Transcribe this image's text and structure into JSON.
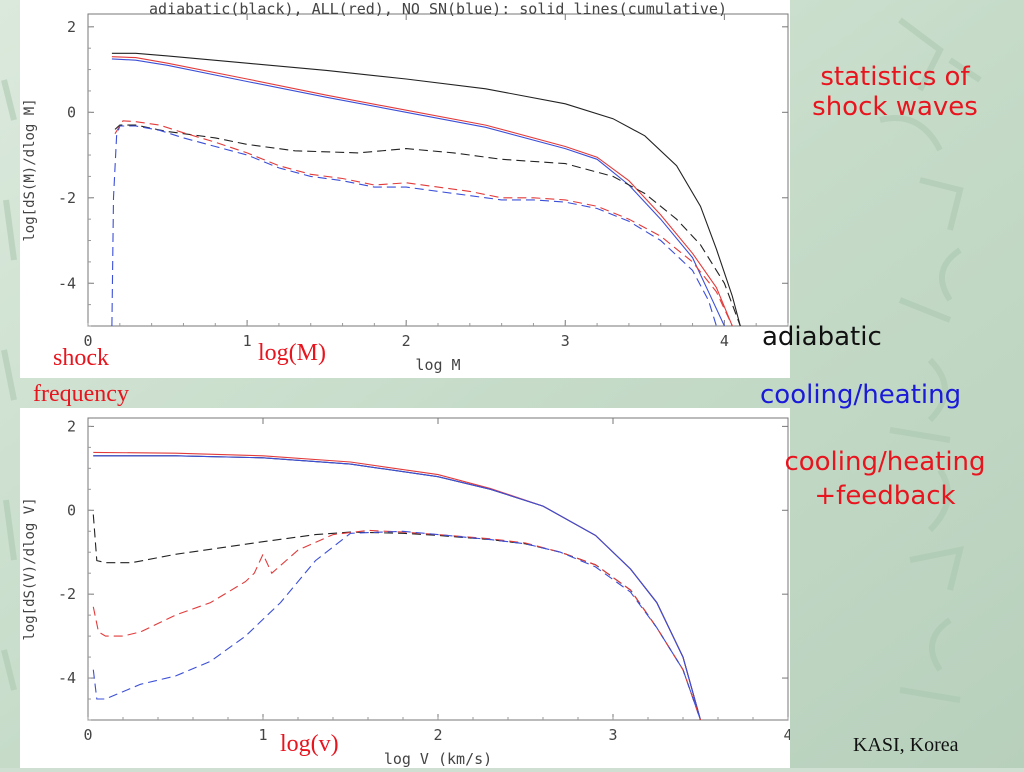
{
  "annotations": {
    "statistics": "statistics of\nshock waves",
    "adiabatic": "adiabatic",
    "cooling": "cooling/heating",
    "feedback": "cooling/heating\n+feedback",
    "shock_frequency": "shock\nfrequency",
    "logM": "log(M)",
    "logv": "log(v)",
    "credit": "KASI, Korea"
  },
  "colors": {
    "adiabatic": "#222222",
    "all": "#e23b3b",
    "nosn": "#3b4fd8"
  },
  "chart_data": [
    {
      "type": "line",
      "title": "adiabatic(black), ALL(red), NO SN(blue): solid lines(cumulative)",
      "xlabel": "log M",
      "ylabel": "log[dS(M)/dlog M]",
      "xlim": [
        0,
        4.4
      ],
      "ylim": [
        -5,
        2.3
      ],
      "xticks": [
        0,
        1,
        2,
        3,
        4
      ],
      "yticks": [
        -4,
        -2,
        0,
        2
      ],
      "series": [
        {
          "color": "#222222",
          "style": "solid",
          "x": [
            0.15,
            0.3,
            0.5,
            1.0,
            1.5,
            2.0,
            2.5,
            3.0,
            3.3,
            3.5,
            3.7,
            3.85,
            3.95,
            4.05,
            4.1
          ],
          "y": [
            1.38,
            1.38,
            1.32,
            1.15,
            0.98,
            0.78,
            0.55,
            0.2,
            -0.15,
            -0.55,
            -1.25,
            -2.2,
            -3.2,
            -4.3,
            -5.0
          ]
        },
        {
          "color": "#e23b3b",
          "style": "solid",
          "x": [
            0.15,
            0.3,
            0.5,
            1.0,
            1.5,
            2.0,
            2.5,
            3.0,
            3.2,
            3.4,
            3.6,
            3.8,
            3.95,
            4.05
          ],
          "y": [
            1.3,
            1.28,
            1.15,
            0.78,
            0.4,
            0.05,
            -0.3,
            -0.8,
            -1.05,
            -1.6,
            -2.4,
            -3.3,
            -4.1,
            -5.0
          ]
        },
        {
          "color": "#3b4fd8",
          "style": "solid",
          "x": [
            0.15,
            0.3,
            0.5,
            1.0,
            1.5,
            2.0,
            2.5,
            3.0,
            3.2,
            3.4,
            3.6,
            3.8,
            3.9,
            4.0
          ],
          "y": [
            1.25,
            1.22,
            1.1,
            0.72,
            0.35,
            0.0,
            -0.35,
            -0.85,
            -1.1,
            -1.7,
            -2.5,
            -3.4,
            -4.2,
            -5.0
          ]
        },
        {
          "color": "#222222",
          "style": "dashed",
          "x": [
            0.17,
            0.2,
            0.3,
            0.5,
            0.8,
            1.0,
            1.3,
            1.7,
            2.0,
            2.3,
            2.6,
            3.0,
            3.3,
            3.5,
            3.7,
            3.85,
            4.0,
            4.1
          ],
          "y": [
            -0.4,
            -0.3,
            -0.3,
            -0.45,
            -0.6,
            -0.75,
            -0.9,
            -0.95,
            -0.85,
            -0.95,
            -1.1,
            -1.2,
            -1.5,
            -1.9,
            -2.5,
            -3.1,
            -4.0,
            -5.0
          ]
        },
        {
          "color": "#e23b3b",
          "style": "dashed",
          "x": [
            0.17,
            0.22,
            0.3,
            0.45,
            0.6,
            0.8,
            1.0,
            1.2,
            1.4,
            1.6,
            1.8,
            2.0,
            2.2,
            2.4,
            2.6,
            2.8,
            3.0,
            3.2,
            3.4,
            3.6,
            3.8,
            3.95,
            4.05
          ],
          "y": [
            -0.5,
            -0.2,
            -0.22,
            -0.3,
            -0.48,
            -0.7,
            -0.95,
            -1.25,
            -1.45,
            -1.55,
            -1.7,
            -1.65,
            -1.75,
            -1.85,
            -2.0,
            -2.0,
            -2.05,
            -2.2,
            -2.5,
            -2.9,
            -3.5,
            -4.2,
            -5.0
          ]
        },
        {
          "color": "#3b4fd8",
          "style": "dashed",
          "x": [
            0.15,
            0.16,
            0.18,
            0.2,
            0.3,
            0.45,
            0.6,
            0.8,
            1.0,
            1.2,
            1.4,
            1.6,
            1.8,
            2.0,
            2.2,
            2.4,
            2.6,
            2.8,
            3.0,
            3.2,
            3.4,
            3.6,
            3.8,
            3.9,
            3.95
          ],
          "y": [
            -5.0,
            -2.0,
            -0.55,
            -0.32,
            -0.32,
            -0.42,
            -0.6,
            -0.8,
            -1.0,
            -1.3,
            -1.5,
            -1.6,
            -1.75,
            -1.75,
            -1.85,
            -1.95,
            -2.05,
            -2.05,
            -2.1,
            -2.25,
            -2.55,
            -3.0,
            -3.7,
            -4.4,
            -5.0
          ]
        }
      ]
    },
    {
      "type": "line",
      "title": "",
      "xlabel": "log V (km/s)",
      "ylabel": "log[dS(V)/dlog V]",
      "xlim": [
        0,
        4
      ],
      "ylim": [
        -5,
        2.2
      ],
      "xticks": [
        0,
        1,
        2,
        3,
        4
      ],
      "yticks": [
        -4,
        -2,
        0,
        2
      ],
      "series": [
        {
          "color": "#222222",
          "style": "solid",
          "x": [
            0.03,
            0.5,
            1.0,
            1.5,
            2.0,
            2.3,
            2.6,
            2.9,
            3.1,
            3.25,
            3.4,
            3.5
          ],
          "y": [
            1.3,
            1.3,
            1.25,
            1.1,
            0.8,
            0.5,
            0.1,
            -0.6,
            -1.4,
            -2.2,
            -3.5,
            -5.0
          ]
        },
        {
          "color": "#e23b3b",
          "style": "solid",
          "x": [
            0.03,
            0.5,
            1.0,
            1.5,
            2.0,
            2.3,
            2.6,
            2.9,
            3.1,
            3.25,
            3.4,
            3.5
          ],
          "y": [
            1.38,
            1.36,
            1.3,
            1.15,
            0.85,
            0.52,
            0.1,
            -0.6,
            -1.4,
            -2.2,
            -3.5,
            -5.0
          ]
        },
        {
          "color": "#3b4fd8",
          "style": "solid",
          "x": [
            0.03,
            0.5,
            1.0,
            1.5,
            2.0,
            2.3,
            2.6,
            2.9,
            3.1,
            3.25,
            3.4,
            3.5
          ],
          "y": [
            1.3,
            1.3,
            1.25,
            1.1,
            0.8,
            0.5,
            0.1,
            -0.6,
            -1.4,
            -2.2,
            -3.5,
            -5.0
          ]
        },
        {
          "color": "#222222",
          "style": "dashed",
          "x": [
            0.03,
            0.05,
            0.1,
            0.25,
            0.5,
            1.0,
            1.3,
            1.5,
            1.8,
            2.0,
            2.3,
            2.5,
            2.7,
            2.9,
            3.1,
            3.25,
            3.4,
            3.5
          ],
          "y": [
            -0.1,
            -1.2,
            -1.25,
            -1.25,
            -1.05,
            -0.75,
            -0.58,
            -0.52,
            -0.55,
            -0.6,
            -0.7,
            -0.8,
            -1.0,
            -1.3,
            -1.9,
            -2.8,
            -3.8,
            -5.0
          ]
        },
        {
          "color": "#e23b3b",
          "style": "dashed",
          "x": [
            0.03,
            0.06,
            0.1,
            0.2,
            0.3,
            0.5,
            0.7,
            0.9,
            0.95,
            1.0,
            1.05,
            1.2,
            1.4,
            1.6,
            1.8,
            2.0,
            2.3,
            2.5,
            2.7,
            2.9,
            3.1,
            3.25,
            3.4,
            3.5
          ],
          "y": [
            -2.3,
            -2.9,
            -3.0,
            -3.0,
            -2.9,
            -2.5,
            -2.2,
            -1.7,
            -1.5,
            -1.05,
            -1.5,
            -0.95,
            -0.58,
            -0.48,
            -0.52,
            -0.58,
            -0.68,
            -0.78,
            -1.0,
            -1.3,
            -1.9,
            -2.8,
            -3.8,
            -5.0
          ]
        },
        {
          "color": "#3b4fd8",
          "style": "dashed",
          "x": [
            0.03,
            0.05,
            0.1,
            0.3,
            0.5,
            0.7,
            0.9,
            1.1,
            1.3,
            1.5,
            1.8,
            2.0,
            2.3,
            2.5,
            2.7,
            2.9,
            3.1,
            3.25,
            3.4,
            3.5
          ],
          "y": [
            -3.8,
            -4.5,
            -4.5,
            -4.15,
            -3.95,
            -3.6,
            -3.0,
            -2.2,
            -1.2,
            -0.55,
            -0.5,
            -0.58,
            -0.7,
            -0.8,
            -1.0,
            -1.35,
            -1.95,
            -2.8,
            -3.8,
            -5.0
          ]
        }
      ]
    }
  ]
}
